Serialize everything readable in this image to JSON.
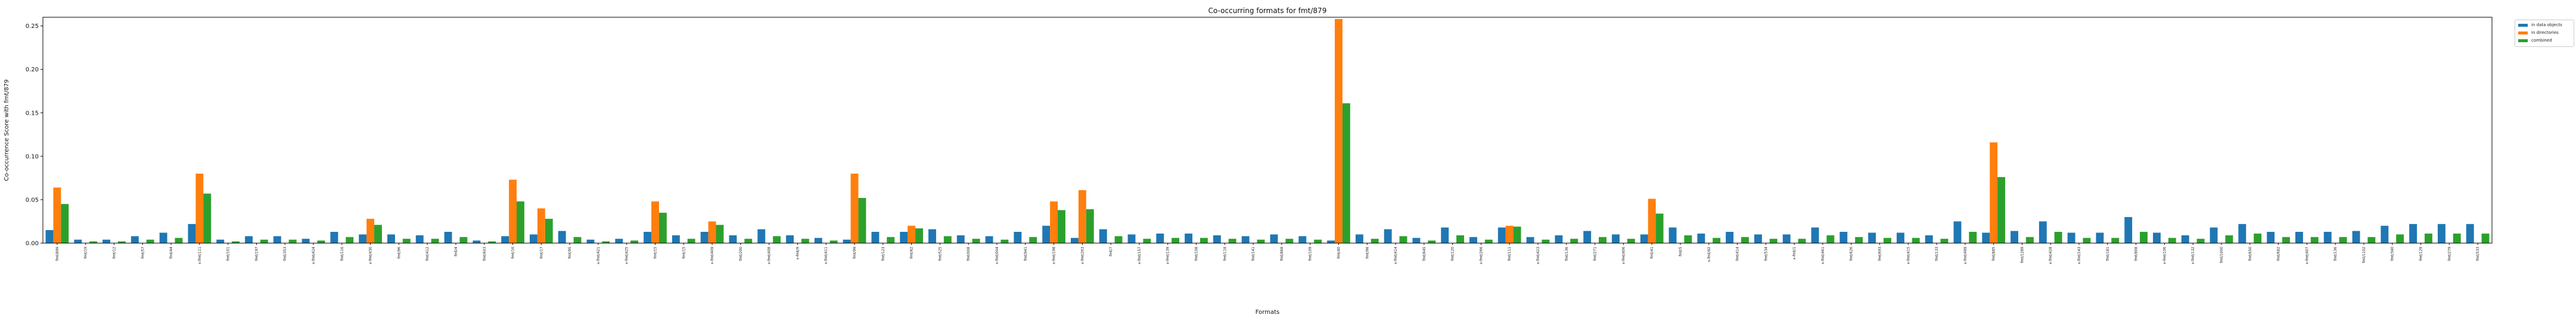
{
  "chart_data": {
    "type": "bar",
    "title": "Co-occurring formats for fmt/879",
    "xlabel": "Formats",
    "ylabel": "Co-occurrence Score with fmt/879",
    "ylim": [
      0,
      0.26
    ],
    "yticks": [
      "0.00",
      "0.05",
      "0.10",
      "0.15",
      "0.20",
      "0.25"
    ],
    "legend_position": "outside-top-right",
    "categories": [
      "fmt/899",
      "fmt/19",
      "fmt/12",
      "fmt/57",
      "fmt/44",
      "x-fmt/111",
      "fmt/101",
      "fmt/197",
      "fmt/353",
      "x-fmt/424",
      "fmt/116",
      "x-fmt/430",
      "fmt/96",
      "fmt/412",
      "fmt/4",
      "fmt/603",
      "fmt/16",
      "fmt/17",
      "fmt/95",
      "x-fmt/421",
      "x-fmt/425",
      "fmt/15",
      "fmt/15",
      "x-fmt/409",
      "fmt/200",
      "x-fmt/408",
      "x-fmt/9",
      "x-fmt/411",
      "fmt/99",
      "fmt/123",
      "fmt/62",
      "fmt/525",
      "fmt/008",
      "x-fmt/004",
      "fmt/941",
      "x-fmt/198",
      "x-fmt/263",
      "fmt/7",
      "x-fmt/157",
      "x-fmt/139",
      "fmt/108",
      "fmt/118",
      "fmt/141",
      "fmt/868",
      "fmt/109",
      "fmt/40",
      "fmt/98",
      "x-fmt/414",
      "fmt/645",
      "fmt/120",
      "x-fmt/266",
      "fmt/111",
      "x-fmt/423",
      "fmt/136",
      "fmt/271",
      "x-fmt/406",
      "fmt/41",
      "fmt/5",
      "x-fmt/92",
      "fmt/414",
      "fmt/534",
      "x-fmt/1",
      "x-fmt/461",
      "fmt/626",
      "fmt/693",
      "x-fmt/415",
      "fmt/133",
      "x-fmt/499",
      "fmt/885",
      "fmt/1289",
      "x-fmt/428",
      "x-fmt/143",
      "fmt/181",
      "fmt/808",
      "x-fmt/106",
      "x-fmt/132",
      "fmt/1000",
      "fmt/650",
      "fmt/682",
      "x-fmt/407",
      "fmt/136",
      "fmt/1102",
      "fmt/340",
      "fmt/129",
      "fmt/279",
      "fmt/533"
    ],
    "series": [
      {
        "name": "in data objects",
        "color": "#1f77b4",
        "values": [
          0.015,
          0.004,
          0.004,
          0.008,
          0.012,
          0.022,
          0.004,
          0.008,
          0.008,
          0.005,
          0.013,
          0.01,
          0.01,
          0.009,
          0.013,
          0.003,
          0.008,
          0.01,
          0.014,
          0.004,
          0.005,
          0.013,
          0.009,
          0.013,
          0.009,
          0.016,
          0.009,
          0.006,
          0.004,
          0.013,
          0.013,
          0.016,
          0.009,
          0.008,
          0.013,
          0.02,
          0.006,
          0.016,
          0.01,
          0.011,
          0.011,
          0.009,
          0.008,
          0.01,
          0.008,
          0.003,
          0.01,
          0.016,
          0.006,
          0.018,
          0.007,
          0.018,
          0.007,
          0.009,
          0.014,
          0.01,
          0.01,
          0.018,
          0.011,
          0.013,
          0.01,
          0.01,
          0.018,
          0.013,
          0.012,
          0.012,
          0.009,
          0.025,
          0.012,
          0.014,
          0.025,
          0.012,
          0.012,
          0.03,
          0.012,
          0.009,
          0.018,
          0.022,
          0.013,
          0.013,
          0.013,
          0.014,
          0.02,
          0.022,
          0.022,
          0.022
        ]
      },
      {
        "name": "in directories",
        "color": "#ff7f0e",
        "values": [
          0.064,
          0,
          0,
          0,
          0,
          0.08,
          0,
          0,
          0,
          0,
          0,
          0.028,
          0,
          0,
          0,
          0,
          0.073,
          0.04,
          0,
          0,
          0,
          0.048,
          0,
          0.025,
          0,
          0,
          0,
          0,
          0.08,
          0,
          0.02,
          0,
          0,
          0,
          0,
          0.048,
          0.061,
          0,
          0,
          0,
          0,
          0,
          0,
          0,
          0,
          0.258,
          0,
          0,
          0,
          0,
          0,
          0.02,
          0,
          0,
          0,
          0,
          0.051,
          0,
          0,
          0,
          0,
          0,
          0,
          0,
          0,
          0,
          0,
          0,
          0.116,
          0,
          0,
          0,
          0,
          0,
          0,
          0,
          0,
          0,
          0,
          0,
          0,
          0,
          0,
          0,
          0,
          0
        ]
      },
      {
        "name": "combined",
        "color": "#2ca02c",
        "values": [
          0.045,
          0.002,
          0.002,
          0.004,
          0.006,
          0.057,
          0.002,
          0.004,
          0.004,
          0.003,
          0.007,
          0.021,
          0.005,
          0.005,
          0.007,
          0.002,
          0.048,
          0.028,
          0.007,
          0.002,
          0.003,
          0.035,
          0.005,
          0.021,
          0.005,
          0.008,
          0.005,
          0.003,
          0.052,
          0.007,
          0.017,
          0.008,
          0.005,
          0.004,
          0.007,
          0.038,
          0.039,
          0.008,
          0.005,
          0.006,
          0.006,
          0.005,
          0.004,
          0.005,
          0.004,
          0.161,
          0.005,
          0.008,
          0.003,
          0.009,
          0.004,
          0.019,
          0.004,
          0.005,
          0.007,
          0.005,
          0.034,
          0.009,
          0.006,
          0.007,
          0.005,
          0.005,
          0.009,
          0.007,
          0.006,
          0.006,
          0.005,
          0.013,
          0.076,
          0.007,
          0.013,
          0.006,
          0.006,
          0.013,
          0.006,
          0.005,
          0.009,
          0.011,
          0.007,
          0.007,
          0.007,
          0.007,
          0.01,
          0.011,
          0.011,
          0.011
        ]
      }
    ]
  }
}
